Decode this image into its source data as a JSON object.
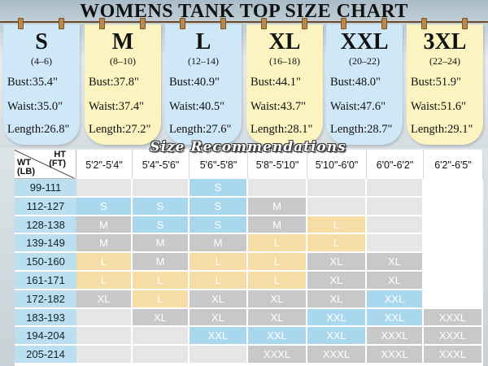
{
  "title": "WOMENS TANK TOP SIZE CHART",
  "subtitle": "Size Recommendations",
  "colors": {
    "blue_card": "#cfe8f8",
    "yellow_card": "#fbf3c0",
    "blue_cell": "#a9d8ee",
    "yellow_cell": "#f5dda5",
    "gray_cell": "#c8c8c8",
    "row_header": "#bcdff0"
  },
  "size_cards": [
    {
      "size": "S",
      "range": "(4–6)",
      "bust": "Bust:35.4\"",
      "waist": "Waist:35.0\"",
      "length": "Length:26.8\"",
      "color": "#cfe8f8"
    },
    {
      "size": "M",
      "range": "(8–10)",
      "bust": "Bust:37.8\"",
      "waist": "Waist:37.4\"",
      "length": "Length:27.2\"",
      "color": "#fbf3c0"
    },
    {
      "size": "L",
      "range": "(12–14)",
      "bust": "Bust:40.9\"",
      "waist": "Waist:40.5\"",
      "length": "Length:27.6\"",
      "color": "#cfe8f8"
    },
    {
      "size": "XL",
      "range": "(16–18)",
      "bust": "Bust:44.1\"",
      "waist": "Waist:43.7\"",
      "length": "Length:28.1\"",
      "color": "#fbf3c0"
    },
    {
      "size": "XXL",
      "range": "(20–22)",
      "bust": "Bust:48.0\"",
      "waist": "Waist:47.6\"",
      "length": "Length:28.7\"",
      "color": "#cfe8f8"
    },
    {
      "size": "3XL",
      "range": "(22–24)",
      "bust": "Bust:51.9\"",
      "waist": "Waist:51.6\"",
      "length": "Length:29.1\"",
      "color": "#fbf3c0"
    }
  ],
  "table": {
    "corner_ht": "HT\n(FT)",
    "corner_wt": "WT\n(LB)",
    "columns": [
      "5'2\"-5'4\"",
      "5'4\"-5'6\"",
      "5'6\"-5'8\"",
      "5'8\"-5'10\"",
      "5'10\"-6'0\"",
      "6'0\"-6'2\"",
      "6'2\"-6'5\""
    ],
    "rows": [
      {
        "weight": "99-111",
        "cells": [
          "",
          "",
          "S",
          "",
          "",
          "",
          ""
        ]
      },
      {
        "weight": "112-127",
        "cells": [
          "S",
          "S",
          "S",
          "M",
          "",
          "",
          ""
        ]
      },
      {
        "weight": "128-138",
        "cells": [
          "M",
          "S",
          "S",
          "M",
          "L",
          "",
          ""
        ]
      },
      {
        "weight": "139-149",
        "cells": [
          "M",
          "M",
          "M",
          "L",
          "L",
          "",
          ""
        ]
      },
      {
        "weight": "150-160",
        "cells": [
          "L",
          "M",
          "L",
          "L",
          "XL",
          "XL",
          ""
        ]
      },
      {
        "weight": "161-171",
        "cells": [
          "L",
          "L",
          "L",
          "L",
          "XL",
          "XL",
          ""
        ]
      },
      {
        "weight": "172-182",
        "cells": [
          "XL",
          "L",
          "XL",
          "XL",
          "XL",
          "XXL",
          ""
        ]
      },
      {
        "weight": "183-193",
        "cells": [
          "",
          "XL",
          "XL",
          "XL",
          "XXL",
          "XXL",
          "XXXL"
        ]
      },
      {
        "weight": "194-204",
        "cells": [
          "",
          "",
          "XXL",
          "XXL",
          "XXL",
          "XXXL",
          "XXXL"
        ]
      },
      {
        "weight": "205-214",
        "cells": [
          "",
          "",
          "",
          "XXXL",
          "XXXL",
          "XXXL",
          "XXXL"
        ]
      }
    ]
  }
}
